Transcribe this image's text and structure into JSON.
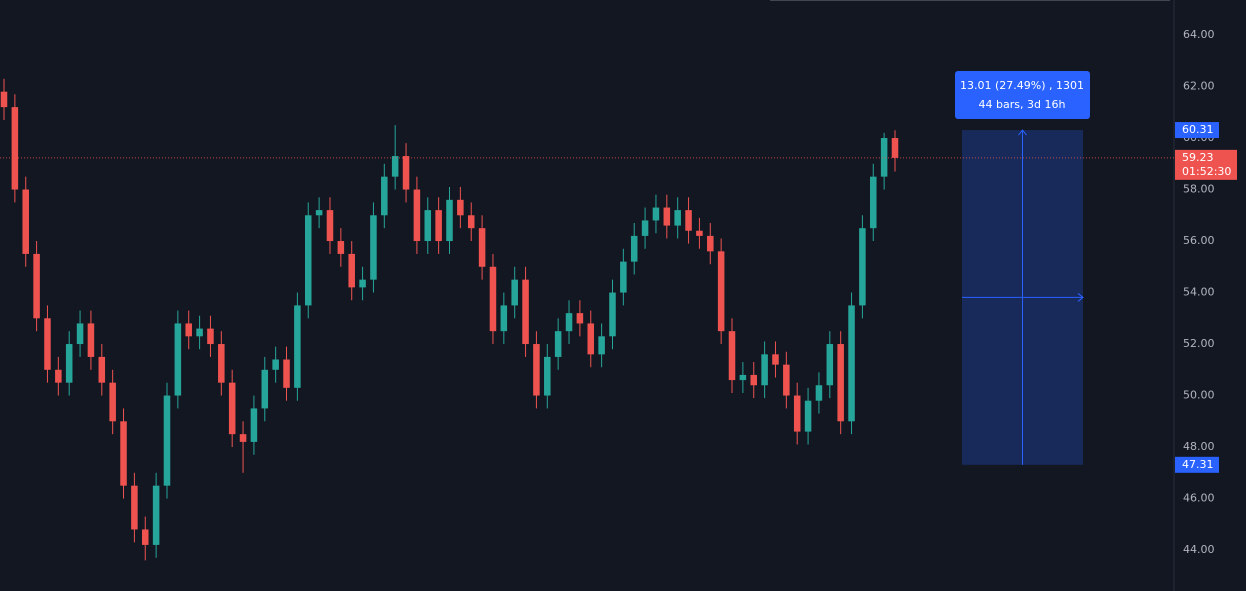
{
  "chart_data": {
    "type": "candlestick",
    "open": [
      61.8,
      61.2,
      58.0,
      55.5,
      53.0,
      51.0,
      50.5,
      52.0,
      52.8,
      51.5,
      50.5,
      49.0,
      46.5,
      44.8,
      44.2,
      46.5,
      50.0,
      52.8,
      52.3,
      52.6,
      52.0,
      50.5,
      48.5,
      48.2,
      49.5,
      51.0,
      51.4,
      50.3,
      53.5,
      57.0,
      57.2,
      56.0,
      55.5,
      54.2,
      54.5,
      57.0,
      58.5,
      59.3,
      58.0,
      56.0,
      57.2,
      56.0,
      57.6,
      57.0,
      56.5,
      55.0,
      52.5,
      53.5,
      54.5,
      52.0,
      50.0,
      51.5,
      52.5,
      53.2,
      52.8,
      51.6,
      52.3,
      54.0,
      55.2,
      56.2,
      56.8,
      57.3,
      56.6,
      57.2,
      56.4,
      56.2,
      55.6,
      52.5,
      50.6,
      50.8,
      50.4,
      51.6,
      51.2,
      50.0,
      48.6,
      49.8,
      50.4,
      52.0,
      49.0,
      53.5,
      56.5,
      58.5,
      60.0
    ],
    "high": [
      62.3,
      61.7,
      58.5,
      56.0,
      53.5,
      51.5,
      52.5,
      53.3,
      53.3,
      52.0,
      51.0,
      49.5,
      47.0,
      45.3,
      47.0,
      50.5,
      53.3,
      53.3,
      53.1,
      53.1,
      52.5,
      51.0,
      49.0,
      50.0,
      51.5,
      51.9,
      51.9,
      54.0,
      57.5,
      57.7,
      57.7,
      56.5,
      56.0,
      55.0,
      57.5,
      59.0,
      60.5,
      59.8,
      58.5,
      57.7,
      57.7,
      58.1,
      58.1,
      57.5,
      57.0,
      55.5,
      54.0,
      55.0,
      55.0,
      52.5,
      52.0,
      53.0,
      53.7,
      53.7,
      53.3,
      52.8,
      54.5,
      55.7,
      56.7,
      57.3,
      57.8,
      57.8,
      57.7,
      57.7,
      56.9,
      56.7,
      56.1,
      53.0,
      51.3,
      51.3,
      52.1,
      52.1,
      51.7,
      50.5,
      50.3,
      50.9,
      52.5,
      52.5,
      54.0,
      57.0,
      59.0,
      60.2,
      60.3
    ],
    "low": [
      60.7,
      57.5,
      55.0,
      52.5,
      50.5,
      50.0,
      50.0,
      51.5,
      51.0,
      50.0,
      48.5,
      46.0,
      44.3,
      43.6,
      43.7,
      46.0,
      49.5,
      51.8,
      51.8,
      51.5,
      50.0,
      48.0,
      47.0,
      47.7,
      49.0,
      50.5,
      49.8,
      49.8,
      53.0,
      56.5,
      55.5,
      55.0,
      53.7,
      53.7,
      54.0,
      56.5,
      58.0,
      57.5,
      55.5,
      55.5,
      55.5,
      55.5,
      56.5,
      56.0,
      54.5,
      52.0,
      52.0,
      53.0,
      51.5,
      49.5,
      49.5,
      51.0,
      52.0,
      52.3,
      51.1,
      51.1,
      51.8,
      53.5,
      54.7,
      55.7,
      56.3,
      56.1,
      56.1,
      55.9,
      55.7,
      55.1,
      52.0,
      50.1,
      50.1,
      49.9,
      49.9,
      50.7,
      49.5,
      48.1,
      48.1,
      49.3,
      49.9,
      48.5,
      48.5,
      53.0,
      56.0,
      58.0,
      58.7
    ],
    "close": [
      61.2,
      58.0,
      55.5,
      53.0,
      51.0,
      50.5,
      52.0,
      52.8,
      51.5,
      50.5,
      49.0,
      46.5,
      44.8,
      44.2,
      46.5,
      50.0,
      52.8,
      52.3,
      52.6,
      52.0,
      50.5,
      48.5,
      48.2,
      49.5,
      51.0,
      51.4,
      50.3,
      53.5,
      57.0,
      57.2,
      56.0,
      55.5,
      54.2,
      54.5,
      57.0,
      58.5,
      59.3,
      58.0,
      56.0,
      57.2,
      56.0,
      57.6,
      57.0,
      56.5,
      55.0,
      52.5,
      53.5,
      54.5,
      52.0,
      50.0,
      51.5,
      52.5,
      53.2,
      52.8,
      51.6,
      52.3,
      54.0,
      55.2,
      56.2,
      56.8,
      57.3,
      56.6,
      57.2,
      56.4,
      56.2,
      55.6,
      52.5,
      50.6,
      50.8,
      50.4,
      51.6,
      51.2,
      50.0,
      48.6,
      49.8,
      50.4,
      52.0,
      49.0,
      53.5,
      56.5,
      58.5,
      60.0,
      59.23
    ],
    "up_color": "#26a69a",
    "down_color": "#ef5350",
    "ylim": [
      42.41,
      65.36
    ],
    "yticks": [
      {
        "value": 44,
        "label": "44.00"
      },
      {
        "value": 46,
        "label": "46.00"
      },
      {
        "value": 48,
        "label": "48.00"
      },
      {
        "value": 50,
        "label": "50.00"
      },
      {
        "value": 52,
        "label": "52.00"
      },
      {
        "value": 54,
        "label": "54.00"
      },
      {
        "value": 56,
        "label": "56.00"
      },
      {
        "value": 58,
        "label": "58.00"
      },
      {
        "value": 60,
        "label": "60.00"
      },
      {
        "value": 62,
        "label": "62.00"
      },
      {
        "value": 64,
        "label": "64.00"
      }
    ],
    "grid": false,
    "price_line": {
      "value": 59.23,
      "countdown": "01:52:30",
      "color": "#ef5350"
    },
    "measure": {
      "from": 47.31,
      "to": 60.31,
      "line1": "13.01 (27.49%) , 1301",
      "line2": "44 bars, 3d 16h",
      "color": "#2962ff"
    }
  }
}
